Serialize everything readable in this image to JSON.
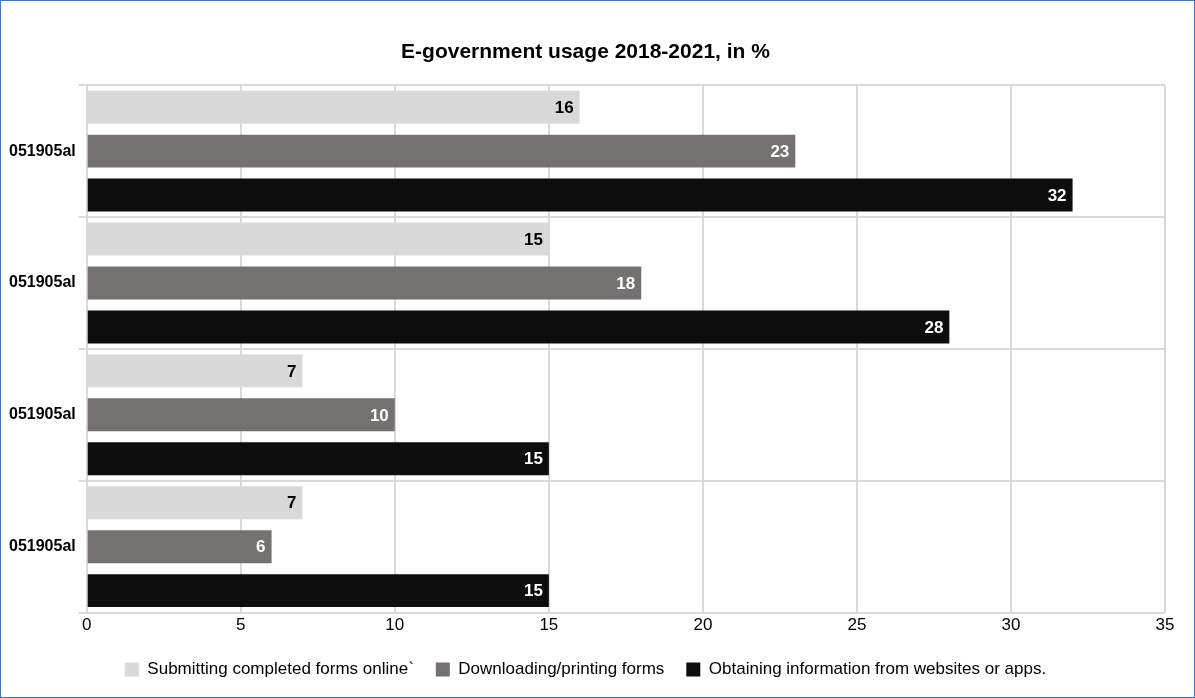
{
  "chart_data": {
    "type": "bar",
    "orientation": "horizontal",
    "title": "E-government usage 2018-2021, in %",
    "categories": [
      "051905al",
      "051905al",
      "051905al",
      "051905al"
    ],
    "series": [
      {
        "name": "Submitting completed forms online`",
        "color": "#d9d9d9",
        "values": [
          16,
          15,
          7,
          7
        ]
      },
      {
        "name": "Downloading/printing forms",
        "color": "#767171",
        "values": [
          23,
          18,
          10,
          6
        ]
      },
      {
        "name": "Obtaining information from websites or apps.",
        "color": "#0d0d0d",
        "values": [
          32,
          28,
          15,
          15
        ]
      }
    ],
    "xlim": [
      0,
      35
    ],
    "xticks": [
      0,
      5,
      10,
      15,
      20,
      25,
      30,
      35
    ],
    "grid": true,
    "legend": "bottom",
    "data_labels": true
  }
}
